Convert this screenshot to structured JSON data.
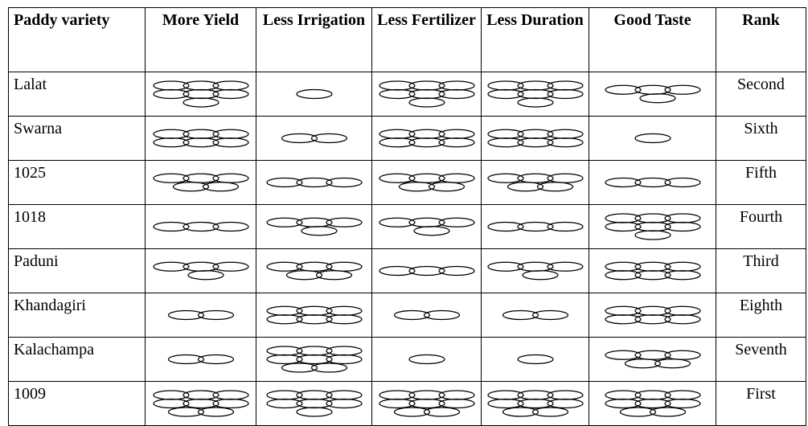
{
  "table": {
    "columns": [
      "Paddy variety",
      "More Yield",
      "Less Irrigation",
      "Less Fertilizer",
      "Less Duration",
      "Good Taste",
      "Rank"
    ],
    "rows": [
      {
        "variety": "Lalat",
        "scores": [
          7,
          1,
          7,
          7,
          4
        ],
        "rank": "Second"
      },
      {
        "variety": "Swarna",
        "scores": [
          6,
          2,
          6,
          6,
          1
        ],
        "rank": "Sixth"
      },
      {
        "variety": "1025",
        "scores": [
          5,
          3,
          5,
          5,
          3
        ],
        "rank": "Fifth"
      },
      {
        "variety": "1018",
        "scores": [
          3,
          4,
          4,
          3,
          7
        ],
        "rank": "Fourth"
      },
      {
        "variety": "Paduni",
        "scores": [
          4,
          5,
          3,
          4,
          6
        ],
        "rank": "Third"
      },
      {
        "variety": "Khandagiri",
        "scores": [
          2,
          6,
          2,
          2,
          6
        ],
        "rank": "Eighth"
      },
      {
        "variety": "Kalachampa",
        "scores": [
          2,
          8,
          1,
          1,
          5
        ],
        "rank": "Seventh"
      },
      {
        "variety": "1009",
        "scores": [
          8,
          7,
          8,
          8,
          8
        ],
        "rank": "First"
      }
    ]
  }
}
